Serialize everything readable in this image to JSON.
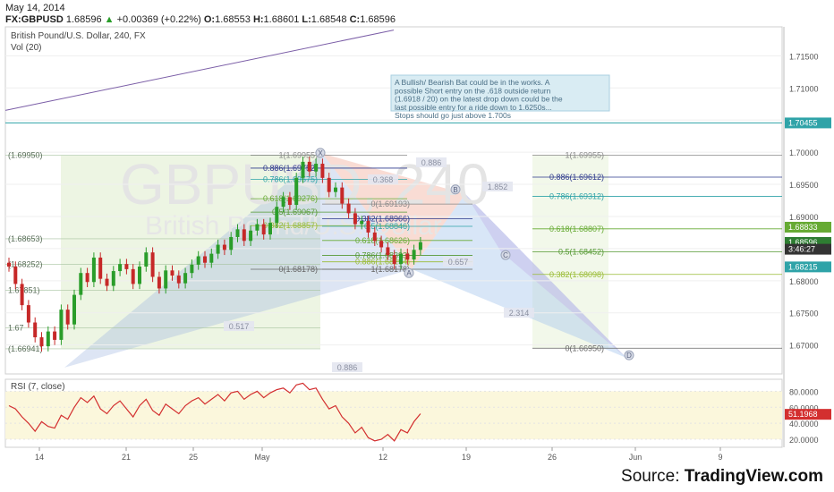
{
  "header": {
    "date": "May 14, 2014",
    "symbol": "FX:GBPUSD",
    "last": "1.68596",
    "change": "+0.00369 (+0.22%)",
    "open_label": "O:",
    "open": "1.68553",
    "high_label": "H:",
    "high": "1.68601",
    "low_label": "L:",
    "low": "1.68548",
    "close_label": "C:",
    "close": "1.68596"
  },
  "pane_title": "British Pound/U.S. Dollar, 240, FX",
  "volume_label": "Vol (20)",
  "watermark": {
    "line1": "GBPUSD, 240",
    "line2": "British Pound/U.S. Dollar"
  },
  "annotation": "A Bullish/ Bearish Bat could be in the works. A possible Short entry on the .618 outside return (1.6918 / 20) on the latest drop down could be the last possible entry for a ride down to 1.6250s... Stops should go just above 1.700s",
  "source": {
    "prefix": "Source: ",
    "brand": "TradingView.com"
  },
  "colors": {
    "up": "#2a9d2a",
    "down": "#c62828",
    "rsi": "#d32f2f",
    "trendline": "#7b5ea7",
    "hline": "#2fa3a8",
    "price_badge": "#2e7d32",
    "axis_badge": "#1f7a7a"
  },
  "chart_data": [
    {
      "type": "candlestick",
      "title": "British Pound/U.S. Dollar, 240, FX",
      "x_tick_labels": [
        "14",
        "21",
        "25",
        "May",
        "12",
        "19",
        "26",
        "Jun",
        "9"
      ],
      "y_tick_labels": [
        "1.71500",
        "1.71000",
        "1.70500",
        "1.70000",
        "1.69500",
        "1.69000",
        "1.68500",
        "1.68000",
        "1.67500",
        "1.67000"
      ],
      "ylim": [
        1.6655,
        1.7195
      ],
      "price_series": [
        1.6822,
        1.6795,
        1.6762,
        1.6735,
        1.6712,
        1.6698,
        1.6721,
        1.6708,
        1.6755,
        1.6732,
        1.6778,
        1.6812,
        1.6798,
        1.6836,
        1.6803,
        1.6792,
        1.6815,
        1.6826,
        1.6818,
        1.6795,
        1.6822,
        1.6844,
        1.6806,
        1.6788,
        1.6816,
        1.6808,
        1.6796,
        1.6812,
        1.6825,
        1.6838,
        1.6828,
        1.6842,
        1.6856,
        1.6848,
        1.6868,
        1.688,
        1.6862,
        1.6878,
        1.6888,
        1.6872,
        1.689,
        1.6915,
        1.693,
        1.6918,
        1.696,
        1.6985,
        1.697,
        1.6982,
        1.696,
        1.6938,
        1.6945,
        1.692,
        1.6905,
        1.6888,
        1.6893,
        1.6875,
        1.6862,
        1.6852,
        1.684,
        1.6826,
        1.6842,
        1.6833,
        1.6848,
        1.686
      ],
      "price_levels": [
        {
          "label": "1.70455",
          "value": 1.70455
        },
        {
          "label": "1.68833",
          "value": 1.68833
        },
        {
          "label": "1.68596",
          "value": 1.68596
        },
        {
          "label": "3:46:27",
          "value": 1.6849
        },
        {
          "label": "1.68215",
          "value": 1.68215
        }
      ],
      "left_labels": [
        {
          "label": "(1.69950)",
          "value": 1.6995
        },
        {
          "label": "(1.68653)",
          "value": 1.68653
        },
        {
          "label": "(1.68252)",
          "value": 1.68252
        },
        {
          "label": "1.67851)",
          "value": 1.67851
        },
        {
          "label": "1.67",
          "value": 1.6727
        },
        {
          "label": "(1.66941)",
          "value": 1.66941
        }
      ],
      "fib_left": [
        {
          "label": "1(1.69955)",
          "value": 1.69955
        },
        {
          "label": "0.886(1.69752)",
          "value": 1.69752
        },
        {
          "label": "0.786(1.69575)",
          "value": 1.69575
        },
        {
          "label": "0.618(1.69276)",
          "value": 1.69276
        },
        {
          "label": "0.5(1.69067)",
          "value": 1.69067
        },
        {
          "label": "0.382(1.68857)",
          "value": 1.68857
        },
        {
          "label": "0(1.68178)",
          "value": 1.68178
        }
      ],
      "fib_mid": [
        {
          "label": "0(1.69193)",
          "value": 1.69193
        },
        {
          "label": "0.382(1.68966)",
          "value": 1.68966
        },
        {
          "label": "0.5(1.68846)",
          "value": 1.68846
        },
        {
          "label": "0.618(1.68626)",
          "value": 1.68626
        },
        {
          "label": "0.786(1.68393)",
          "value": 1.68393
        },
        {
          "label": "0.886(1.68294)",
          "value": 1.68294
        },
        {
          "label": "1(1.68178)",
          "value": 1.68178
        }
      ],
      "fib_right": [
        {
          "label": "1(1.69955)",
          "value": 1.69955
        },
        {
          "label": "0.886(1.69612)",
          "value": 1.69612
        },
        {
          "label": "0.786(1.69312)",
          "value": 1.69312
        },
        {
          "label": "0.618(1.68807)",
          "value": 1.68807
        },
        {
          "label": "0.5(1.68452)",
          "value": 1.68452
        },
        {
          "label": "0.382(1.68098)",
          "value": 1.68098
        },
        {
          "label": "0(1.66950)",
          "value": 1.6695
        }
      ],
      "pattern_points": [
        "X",
        "A",
        "B",
        "C",
        "D"
      ],
      "pattern_ratios": [
        "0.886",
        "0.368",
        "1.852",
        "0.657",
        "2.314",
        "0.517",
        "0.886"
      ]
    },
    {
      "type": "line",
      "title": "RSI (7, close)",
      "y_tick_labels": [
        "80.0000",
        "60.0000",
        "40.0000",
        "20.0000"
      ],
      "ylim": [
        10,
        95
      ],
      "last_value": "51.1968",
      "values": [
        62,
        58,
        48,
        40,
        30,
        42,
        36,
        34,
        50,
        45,
        60,
        72,
        66,
        74,
        58,
        52,
        62,
        68,
        58,
        48,
        62,
        70,
        56,
        50,
        64,
        58,
        52,
        62,
        68,
        72,
        64,
        70,
        76,
        68,
        78,
        80,
        70,
        76,
        80,
        72,
        78,
        82,
        84,
        78,
        88,
        90,
        82,
        84,
        70,
        58,
        62,
        48,
        40,
        28,
        35,
        22,
        18,
        20,
        26,
        18,
        32,
        28,
        42,
        52
      ]
    }
  ]
}
